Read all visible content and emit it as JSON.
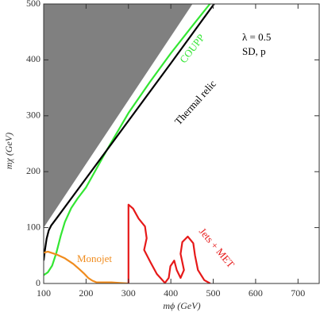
{
  "chart_data": {
    "type": "line",
    "xlabel": "mϕ (GeV)",
    "ylabel": "mχ (GeV)",
    "annotations": [
      "λ = 0.5",
      "SD, p"
    ],
    "xlim": [
      100,
      750
    ],
    "xticks": [
      100,
      200,
      300,
      400,
      500,
      600,
      700
    ],
    "ylim": [
      0,
      500
    ],
    "yticks": [
      0,
      100,
      200,
      300,
      400,
      500
    ],
    "series": [
      {
        "color": "#808080",
        "filled": true,
        "x": [
          100,
          451,
          100
        ],
        "y": [
          100,
          500,
          500
        ]
      },
      {
        "name": "COUPP",
        "color": "#33e633",
        "x": [
          100,
          110,
          120,
          130,
          140,
          150,
          165,
          180,
          200,
          250,
          300,
          350,
          400,
          450,
          492
        ],
        "y": [
          15,
          20,
          32,
          55,
          85,
          110,
          135,
          152,
          172,
          240,
          305,
          360,
          412,
          460,
          500
        ]
      },
      {
        "name": "Thermal relic",
        "color": "#000000",
        "x": [
          100,
          103,
          107,
          112,
          118,
          130,
          200,
          300,
          400,
          502
        ],
        "y": [
          41,
          60,
          80,
          95,
          104,
          116,
          188,
          291,
          394,
          500
        ]
      },
      {
        "name": "Monojet",
        "color": "#f08c1e",
        "x": [
          100,
          110,
          130,
          150,
          170,
          185,
          195,
          205,
          215,
          225,
          240,
          260,
          280,
          300
        ],
        "y": [
          55,
          57,
          52,
          45,
          35,
          25,
          18,
          10,
          5,
          2,
          2,
          2,
          1,
          0
        ]
      },
      {
        "name": "Jets + MET",
        "color": "#e61919",
        "x": [
          300,
          300,
          311,
          324,
          339,
          343,
          337,
          352,
          367,
          386,
          395,
          399,
          408,
          414,
          423,
          431,
          423,
          427,
          440,
          453,
          457,
          464,
          479,
          493
        ],
        "y": [
          0,
          141,
          134,
          116,
          102,
          81,
          60,
          38,
          17,
          1,
          10,
          31,
          41,
          24,
          10,
          24,
          53,
          74,
          84,
          72,
          50,
          24,
          6,
          0
        ]
      }
    ]
  }
}
